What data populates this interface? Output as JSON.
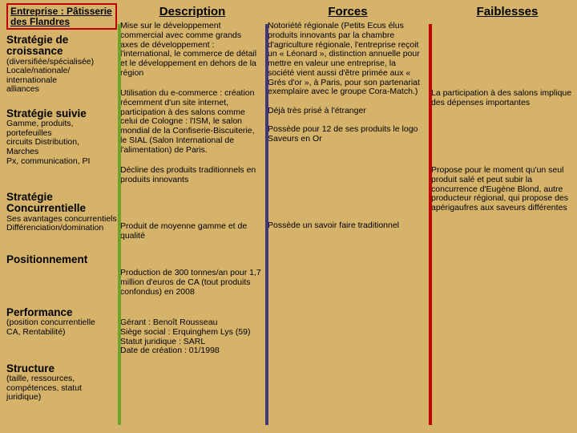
{
  "background_color": "#d6b36a",
  "company_border_color": "#c00000",
  "company_label": "Entreprise : Pâtisserie des Flandres",
  "headers": {
    "description": "Description",
    "forces": "Forces",
    "faiblesses": "Faiblesses"
  },
  "bar_colors": {
    "description": "#6fa229",
    "forces": "#42377e",
    "faiblesses": "#c00000"
  },
  "left": [
    {
      "title": "Stratégie de croissance",
      "sub": "(diversifiée/spécialisée)\nLocale/nationale/\ninternationale\nalliances"
    },
    {
      "title": "Stratégie suivie",
      "sub": "Gamme, produits,\nportefeuilles\ncircuits Distribution,\nMarches\nPx, communication, PI"
    },
    {
      "title": "Stratégie Concurrentielle",
      "sub": "Ses avantages concurrentiels\nDifférenciation/domination"
    },
    {
      "title": "Positionnement",
      "sub": ""
    },
    {
      "title": "Performance",
      "sub": "(position concurrentielle\nCA, Rentabilité)"
    },
    {
      "title": "Structure",
      "sub": "(taille, ressources,\ncompétences, statut juridique)"
    }
  ],
  "description": [
    "Mise sur le développement commercial avec comme grands axes de développement : l'international, le commerce de détail et le développement en dehors de la région",
    "Utilisation du e-commerce : création récemment d'un site internet, participation à des salons comme celui de Cologne : l'ISM, le salon mondial de la Confiserie-Biscuiterie, le SIAL (Salon International de l'alimentation) de Paris.",
    "Décline des produits traditionnels en produits innovants",
    "Produit de moyenne gamme et de qualité",
    "Production de 300 tonnes/an pour 1,7 million d'euros de CA (tout produits confondus) en 2008",
    "Gérant : Benoît Rousseau\nSiège social : Erquinghem Lys (59)\nStatut juridique : SARL\nDate de création : 01/1998"
  ],
  "forces": [
    "Notoriété régionale (Petits Ecus élus produits innovants par la chambre d'agriculture régionale, l'entreprise reçoit un « Léonard », distinction annuelle pour mettre en valeur une entreprise, la société vient aussi d'être primée aux « Grés d'or », à Paris, pour son partenariat exemplaire avec le groupe Cora-Match.)\n\nDéjà très prisé à l'étranger\n\nPossède pour 12 de ses produits le logo Saveurs en Or",
    "",
    "Possède un savoir faire traditionnel",
    "",
    "",
    ""
  ],
  "faiblesses": [
    "",
    "La participation à des salons implique des dépenses importantes",
    "Propose pour le moment qu'un seul produit salé et peut subir la concurrence d'Eugène Blond, autre producteur régional, qui propose des apérigaufres aux saveurs différentes",
    "",
    "",
    ""
  ]
}
